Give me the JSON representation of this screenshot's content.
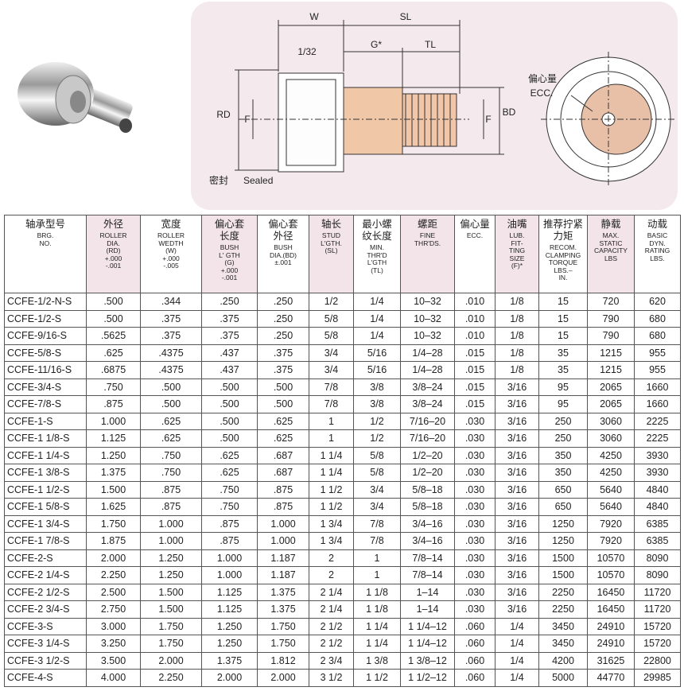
{
  "diagram": {
    "labels": {
      "w": "W",
      "sl": "SL",
      "gap": "1/32",
      "g": "G*",
      "tl": "TL",
      "rd": "RD",
      "f_left": "F",
      "f_right": "F",
      "bd": "BD",
      "sealed_zh": "密封",
      "sealed_en": "Sealed",
      "ecc_zh": "偏心量",
      "ecc_en": "ECC."
    }
  },
  "table": {
    "headers": [
      {
        "zh": [
          "轴承型号"
        ],
        "en": [
          "BRG.",
          "NO."
        ]
      },
      {
        "zh": [
          "外径"
        ],
        "en": [
          "ROLLER",
          "DIA.",
          "(RD)",
          "+.000",
          "-.001"
        ]
      },
      {
        "zh": [
          "宽度"
        ],
        "en": [
          "ROLLER",
          "WEDTH",
          "(W)",
          "+.000",
          "-.005"
        ]
      },
      {
        "zh": [
          "偏心套",
          "长度"
        ],
        "en": [
          "BUSH",
          "L' GTH",
          "(G)",
          "+.000",
          "-.001"
        ]
      },
      {
        "zh": [
          "偏心套",
          "外径"
        ],
        "en": [
          "BUSH",
          "DIA.(BD)",
          "±.001"
        ]
      },
      {
        "zh": [
          "轴长"
        ],
        "en": [
          "STUD",
          "L'GTH.",
          "(SL)"
        ]
      },
      {
        "zh": [
          "最小螺",
          "纹长度"
        ],
        "en": [
          "MIN.",
          "THR'D",
          "L'GTH",
          "(TL)"
        ]
      },
      {
        "zh": [
          "螺距"
        ],
        "en": [
          "FINE",
          "THR'DS."
        ]
      },
      {
        "zh": [
          "偏心量"
        ],
        "en": [
          "ECC."
        ]
      },
      {
        "zh": [
          "油嘴"
        ],
        "en": [
          "LUB.",
          "FIT-",
          "TING",
          "SIZE",
          "(F)*"
        ]
      },
      {
        "zh": [
          "推荐拧紧",
          "力矩"
        ],
        "en": [
          "RECOM.",
          "CLAMPING",
          "TORQUE",
          "LBS.–",
          "IN."
        ]
      },
      {
        "zh": [
          "静载"
        ],
        "en": [
          "MAX.",
          "STATIC",
          "CAPACITY",
          "LBS"
        ]
      },
      {
        "zh": [
          "动载"
        ],
        "en": [
          "BASIC",
          "DYN.",
          "RATING",
          "LBS."
        ]
      }
    ],
    "rows": [
      [
        "CCFE-1/2-N-S",
        ".500",
        ".344",
        ".250",
        ".250",
        "1/2",
        "1/4",
        "10–32",
        ".010",
        "1/8",
        "15",
        "720",
        "620"
      ],
      [
        "CCFE-1/2-S",
        ".500",
        ".375",
        ".375",
        ".250",
        "5/8",
        "1/4",
        "10–32",
        ".010",
        "1/8",
        "15",
        "790",
        "680"
      ],
      [
        "CCFE-9/16-S",
        ".5625",
        ".375",
        ".375",
        ".250",
        "5/8",
        "1/4",
        "10–32",
        ".010",
        "1/8",
        "15",
        "790",
        "680"
      ],
      [
        "CCFE-5/8-S",
        ".625",
        ".4375",
        ".437",
        ".375",
        "3/4",
        "5/16",
        "1/4–28",
        ".015",
        "1/8",
        "35",
        "1215",
        "955"
      ],
      [
        "CCFE-11/16-S",
        ".6875",
        ".4375",
        ".437",
        ".375",
        "3/4",
        "5/16",
        "1/4–28",
        ".015",
        "1/8",
        "35",
        "1215",
        "955"
      ],
      [
        "CCFE-3/4-S",
        ".750",
        ".500",
        ".500",
        ".500",
        "7/8",
        "3/8",
        "3/8–24",
        ".015",
        "3/16",
        "95",
        "2065",
        "1660"
      ],
      [
        "CCFE-7/8-S",
        ".875",
        ".500",
        ".500",
        ".500",
        "7/8",
        "3/8",
        "3/8–24",
        ".015",
        "3/16",
        "95",
        "2065",
        "1660"
      ],
      [
        "CCFE-1-S",
        "1.000",
        ".625",
        ".500",
        ".625",
        "1",
        "1/2",
        "7/16–20",
        ".030",
        "3/16",
        "250",
        "3060",
        "2225"
      ],
      [
        "CCFE-1 1/8-S",
        "1.125",
        ".625",
        ".500",
        ".625",
        "1",
        "1/2",
        "7/16–20",
        ".030",
        "3/16",
        "250",
        "3060",
        "2225"
      ],
      [
        "CCFE-1 1/4-S",
        "1.250",
        ".750",
        ".625",
        ".687",
        "1 1/4",
        "5/8",
        "1/2–20",
        ".030",
        "3/16",
        "350",
        "4250",
        "3930"
      ],
      [
        "CCFE-1 3/8-S",
        "1.375",
        ".750",
        ".625",
        ".687",
        "1 1/4",
        "5/8",
        "1/2–20",
        ".030",
        "3/16",
        "350",
        "4250",
        "3930"
      ],
      [
        "CCFE-1 1/2-S",
        "1.500",
        ".875",
        ".750",
        ".875",
        "1 1/2",
        "3/4",
        "5/8–18",
        ".030",
        "3/16",
        "650",
        "5640",
        "4840"
      ],
      [
        "CCFE-1 5/8-S",
        "1.625",
        ".875",
        ".750",
        ".875",
        "1 1/2",
        "3/4",
        "5/8–18",
        ".030",
        "3/16",
        "650",
        "5640",
        "4840"
      ],
      [
        "CCFE-1 3/4-S",
        "1.750",
        "1.000",
        ".875",
        "1.000",
        "1 3/4",
        "7/8",
        "3/4–16",
        ".030",
        "3/16",
        "1250",
        "7920",
        "6385"
      ],
      [
        "CCFE-1 7/8-S",
        "1.875",
        "1.000",
        ".875",
        "1.000",
        "1 3/4",
        "7/8",
        "3/4–16",
        ".030",
        "3/16",
        "1250",
        "7920",
        "6385"
      ],
      [
        "CCFE-2-S",
        "2.000",
        "1.250",
        "1.000",
        "1.187",
        "2",
        "1",
        "7/8–14",
        ".030",
        "3/16",
        "1500",
        "10570",
        "8090"
      ],
      [
        "CCFE-2 1/4-S",
        "2.250",
        "1.250",
        "1.000",
        "1.187",
        "2",
        "1",
        "7/8–14",
        ".030",
        "3/16",
        "1500",
        "10570",
        "8090"
      ],
      [
        "CCFE-2 1/2-S",
        "2.500",
        "1.500",
        "1.125",
        "1.375",
        "2 1/4",
        "1 1/8",
        "1–14",
        ".030",
        "3/16",
        "2250",
        "16450",
        "11720"
      ],
      [
        "CCFE-2 3/4-S",
        "2.750",
        "1.500",
        "1.125",
        "1.375",
        "2 1/4",
        "1 1/8",
        "1–14",
        ".030",
        "3/16",
        "2250",
        "16450",
        "11720"
      ],
      [
        "CCFE-3-S",
        "3.000",
        "1.750",
        "1.250",
        "1.750",
        "2 1/2",
        "1 1/4",
        "1 1/4–12",
        ".060",
        "1/4",
        "3450",
        "24910",
        "15720"
      ],
      [
        "CCFE-3 1/4-S",
        "3.250",
        "1.750",
        "1.250",
        "1.750",
        "2 1/2",
        "1 1/4",
        "1 1/4–12",
        ".060",
        "1/4",
        "3450",
        "24910",
        "15720"
      ],
      [
        "CCFE-3 1/2-S",
        "3.500",
        "2.000",
        "1.375",
        "1.812",
        "2 3/4",
        "1 3/8",
        "1 3/8–12",
        ".060",
        "1/4",
        "4200",
        "31625",
        "22800"
      ],
      [
        "CCFE-4-S",
        "4.000",
        "2.250",
        "2.000",
        "2.000",
        "3 1/2",
        "1 1/2",
        "1 1/2–12",
        ".060",
        "1/4",
        "5000",
        "44770",
        "29985"
      ]
    ]
  }
}
